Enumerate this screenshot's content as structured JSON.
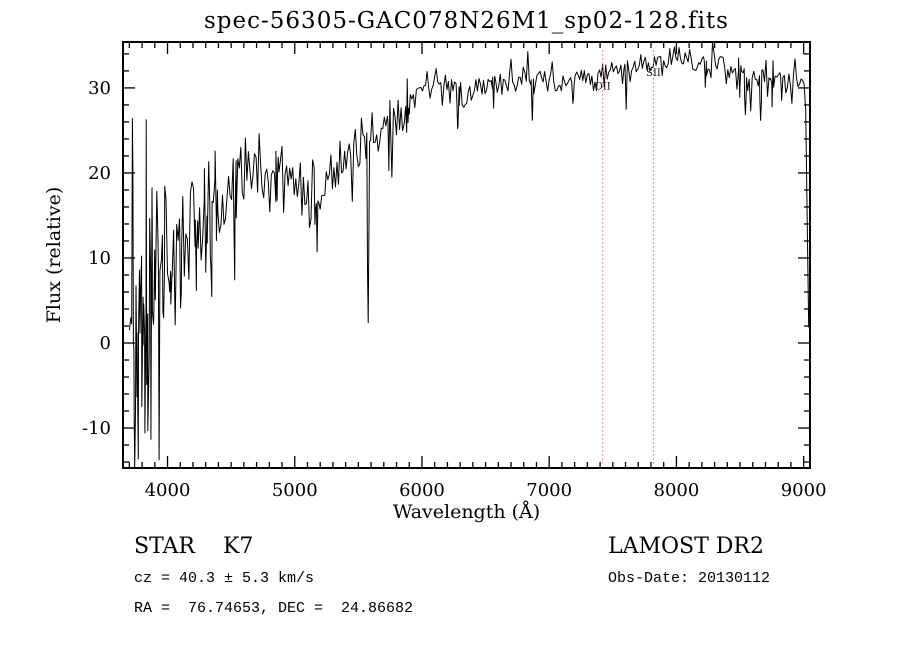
{
  "chart_data": {
    "type": "line",
    "title": "spec-56305-GAC078N26M1_sp02-128.fits",
    "xlabel": "Wavelength (Å)",
    "ylabel": "Flux (relative)",
    "xlim": [
      3650,
      9050
    ],
    "ylim": [
      -14.7,
      35.4
    ],
    "xticks": [
      4000,
      5000,
      6000,
      7000,
      8000,
      9000
    ],
    "yticks": [
      -10,
      0,
      10,
      20,
      30
    ],
    "x_minor_step": 100,
    "y_minor_step": 2,
    "grid": false,
    "legend": "none",
    "line_color": "#000000",
    "marker_color": "#bb7788",
    "noise_seed": 12,
    "sample_step": 12,
    "continuum": [
      [
        3700,
        3
      ],
      [
        3720,
        5
      ],
      [
        3760,
        6
      ],
      [
        3800,
        7
      ],
      [
        3850,
        8
      ],
      [
        3900,
        9
      ],
      [
        3950,
        10
      ],
      [
        4000,
        11
      ],
      [
        4050,
        12
      ],
      [
        4100,
        12.5
      ],
      [
        4150,
        13
      ],
      [
        4200,
        13.5
      ],
      [
        4250,
        14
      ],
      [
        4300,
        15
      ],
      [
        4350,
        16
      ],
      [
        4400,
        17
      ],
      [
        4450,
        18
      ],
      [
        4500,
        19
      ],
      [
        4550,
        19.5
      ],
      [
        4600,
        20.5
      ],
      [
        4650,
        21
      ],
      [
        4700,
        20.5
      ],
      [
        4750,
        20
      ],
      [
        4800,
        20
      ],
      [
        4850,
        20
      ],
      [
        4900,
        20.5
      ],
      [
        4950,
        20
      ],
      [
        5000,
        19.5
      ],
      [
        5050,
        18.5
      ],
      [
        5100,
        17.5
      ],
      [
        5150,
        17
      ],
      [
        5200,
        17.5
      ],
      [
        5250,
        18.5
      ],
      [
        5300,
        19.5
      ],
      [
        5350,
        20.5
      ],
      [
        5400,
        21.5
      ],
      [
        5450,
        22.5
      ],
      [
        5500,
        23.5
      ],
      [
        5550,
        24
      ],
      [
        5600,
        24.5
      ],
      [
        5650,
        25
      ],
      [
        5700,
        25.5
      ],
      [
        5750,
        26
      ],
      [
        5800,
        26.5
      ],
      [
        5850,
        27.5
      ],
      [
        5900,
        28
      ],
      [
        5950,
        29
      ],
      [
        6000,
        29.5
      ],
      [
        6050,
        30.5
      ],
      [
        6100,
        30.5
      ],
      [
        6150,
        30
      ],
      [
        6200,
        30
      ],
      [
        6250,
        29.5
      ],
      [
        6300,
        29.5
      ],
      [
        6350,
        30
      ],
      [
        6400,
        30
      ],
      [
        6450,
        30.5
      ],
      [
        6500,
        30.5
      ],
      [
        6550,
        31
      ],
      [
        6600,
        31
      ],
      [
        6700,
        31
      ],
      [
        6800,
        31
      ],
      [
        6900,
        31.5
      ],
      [
        7000,
        31
      ],
      [
        7100,
        30.5
      ],
      [
        7200,
        31
      ],
      [
        7300,
        31.5
      ],
      [
        7400,
        32
      ],
      [
        7500,
        32
      ],
      [
        7600,
        32
      ],
      [
        7700,
        32.5
      ],
      [
        7800,
        33
      ],
      [
        7900,
        33
      ],
      [
        8000,
        33.5
      ],
      [
        8100,
        33.5
      ],
      [
        8200,
        33
      ],
      [
        8300,
        33
      ],
      [
        8400,
        32.5
      ],
      [
        8500,
        32
      ],
      [
        8600,
        31.5
      ],
      [
        8700,
        31.5
      ],
      [
        8800,
        31.5
      ],
      [
        8900,
        31
      ],
      [
        8950,
        30.5
      ],
      [
        9000,
        30.5
      ],
      [
        9015,
        28
      ],
      [
        9030,
        14
      ],
      [
        9040,
        0
      ]
    ],
    "noise_sigma": [
      [
        3700,
        7.5
      ],
      [
        3750,
        7
      ],
      [
        3800,
        6.5
      ],
      [
        3900,
        5.5
      ],
      [
        4000,
        4.5
      ],
      [
        4100,
        4
      ],
      [
        4200,
        3.5
      ],
      [
        4300,
        3.2
      ],
      [
        4400,
        3
      ],
      [
        4500,
        2.6
      ],
      [
        4700,
        2.3
      ],
      [
        5000,
        2
      ],
      [
        5200,
        1.8
      ],
      [
        5500,
        1.5
      ],
      [
        5800,
        1.3
      ],
      [
        6000,
        1.2
      ],
      [
        6300,
        1
      ],
      [
        6500,
        0.9
      ],
      [
        7000,
        0.85
      ],
      [
        7500,
        0.8
      ],
      [
        8000,
        0.75
      ],
      [
        8300,
        0.8
      ],
      [
        8600,
        0.95
      ],
      [
        8900,
        1
      ],
      [
        9040,
        1.1
      ]
    ],
    "absorption_spikes": [
      [
        3728,
        15,
        10
      ],
      [
        3742,
        -14,
        10
      ],
      [
        3770,
        -12,
        10
      ],
      [
        3798,
        -15,
        10
      ],
      [
        3822,
        -10,
        9
      ],
      [
        3845,
        -12,
        9
      ],
      [
        3869,
        -9,
        9
      ],
      [
        3890,
        -11,
        9
      ],
      [
        3934,
        -9,
        9
      ],
      [
        3969,
        -10,
        9
      ],
      [
        4026,
        -6,
        9
      ],
      [
        4102,
        -7,
        9
      ],
      [
        4227,
        -6,
        9
      ],
      [
        4300,
        -7,
        10
      ],
      [
        4341,
        -7,
        9
      ],
      [
        4383,
        -5,
        9
      ],
      [
        4530,
        -8,
        9
      ],
      [
        4861,
        -5,
        9
      ],
      [
        5170,
        -4,
        12
      ],
      [
        5577,
        -25,
        11
      ],
      [
        5740,
        -6,
        8
      ],
      [
        5890,
        -4,
        10
      ],
      [
        6283,
        -5,
        9
      ],
      [
        6563,
        -4,
        9
      ],
      [
        6867,
        -4,
        9
      ],
      [
        7186,
        -3,
        9
      ],
      [
        7605,
        -4,
        10
      ],
      [
        8227,
        -2.5,
        9
      ],
      [
        8498,
        -4,
        9
      ],
      [
        8542,
        -5.5,
        9
      ],
      [
        8662,
        -6.5,
        9
      ],
      [
        8750,
        -3,
        9
      ],
      [
        8827,
        -4.5,
        9
      ]
    ],
    "line_markers": [
      {
        "x": 7420,
        "label": "OII",
        "label_y": 29.8
      },
      {
        "x": 7820,
        "label": "SII",
        "label_y": 31.4
      }
    ],
    "data_range": [
      3700,
      9040
    ]
  },
  "annotations": {
    "class_line": "STAR    K7",
    "survey": "LAMOST DR2",
    "cz_line": "cz = 40.3 ± 5.3 km/s",
    "obsdate_line": "Obs-Date: 20130112",
    "radec_line": "RA =  76.74653, DEC =  24.86682"
  }
}
